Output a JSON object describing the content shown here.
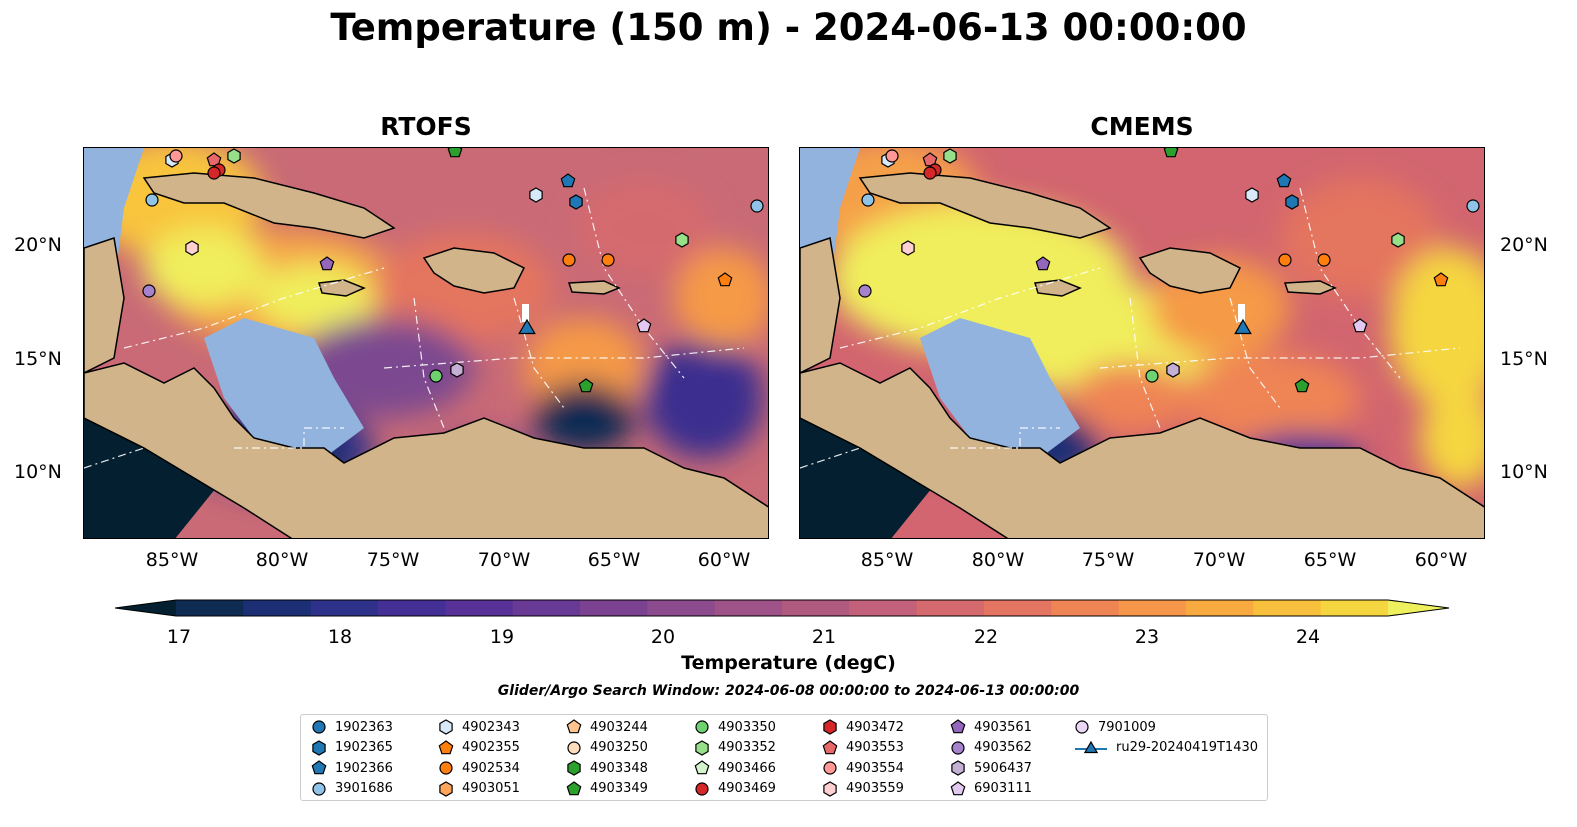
{
  "title": "Temperature (150 m) - 2024-06-13 00:00:00",
  "panels": [
    {
      "title": "RTOFS"
    },
    {
      "title": "CMEMS"
    }
  ],
  "lat_labels": [
    "20°N",
    "15°N",
    "10°N"
  ],
  "lon_labels": [
    "85°W",
    "80°W",
    "75°W",
    "70°W",
    "65°W",
    "60°W"
  ],
  "colorbar": {
    "label": "Temperature (degC)",
    "ticks": [
      "17",
      "18",
      "19",
      "20",
      "21",
      "22",
      "23",
      "24"
    ],
    "min": 17,
    "max": 24.5,
    "step": 0.5,
    "colors": [
      "#041f2f",
      "#0e2b52",
      "#1d2f74",
      "#2e318a",
      "#432f95",
      "#573197",
      "#683a95",
      "#7b4291",
      "#8c4b8c",
      "#9e5287",
      "#b15a80",
      "#c3617a",
      "#d46a6e",
      "#e47563",
      "#ef8455",
      "#f5964a",
      "#f8aa40",
      "#f8bf3c",
      "#f5d640",
      "#eff05e"
    ]
  },
  "search_window": "Glider/Argo Search Window: 2024-06-08 00:00:00 to 2024-06-13 00:00:00",
  "legend": [
    {
      "label": "1902363",
      "marker": "circle",
      "color": "#1f77b4"
    },
    {
      "label": "1902365",
      "marker": "hexagon",
      "color": "#1f77b4"
    },
    {
      "label": "1902366",
      "marker": "pentagon",
      "color": "#1f77b4"
    },
    {
      "label": "3901686",
      "marker": "circle",
      "color": "#8fc3e8"
    },
    {
      "label": "4902343",
      "marker": "hexagon",
      "color": "#d8eafa"
    },
    {
      "label": "4902355",
      "marker": "pentagon",
      "color": "#ff7f0e"
    },
    {
      "label": "4902534",
      "marker": "circle",
      "color": "#ff7f0e"
    },
    {
      "label": "4903051",
      "marker": "hexagon",
      "color": "#ffa55c"
    },
    {
      "label": "4903244",
      "marker": "pentagon",
      "color": "#ffc58f"
    },
    {
      "label": "4903250",
      "marker": "circle",
      "color": "#ffdcbc"
    },
    {
      "label": "4903348",
      "marker": "hexagon",
      "color": "#2ca02c"
    },
    {
      "label": "4903349",
      "marker": "pentagon",
      "color": "#2ca02c"
    },
    {
      "label": "4903350",
      "marker": "circle",
      "color": "#6fd16f"
    },
    {
      "label": "4903352",
      "marker": "hexagon",
      "color": "#98df8a"
    },
    {
      "label": "4903466",
      "marker": "pentagon",
      "color": "#d4f5cc"
    },
    {
      "label": "4903469",
      "marker": "circle",
      "color": "#d62728"
    },
    {
      "label": "4903472",
      "marker": "hexagon",
      "color": "#d62728"
    },
    {
      "label": "4903553",
      "marker": "pentagon",
      "color": "#e8686a"
    },
    {
      "label": "4903554",
      "marker": "circle",
      "color": "#ff9896"
    },
    {
      "label": "4903559",
      "marker": "hexagon",
      "color": "#ffd0d0"
    },
    {
      "label": "4903561",
      "marker": "pentagon",
      "color": "#9467bd"
    },
    {
      "label": "4903562",
      "marker": "circle",
      "color": "#a782cc"
    },
    {
      "label": "5906437",
      "marker": "hexagon",
      "color": "#c5b0d5"
    },
    {
      "label": "6903111",
      "marker": "pentagon",
      "color": "#e3c8f0"
    },
    {
      "label": "7901009",
      "marker": "circle",
      "color": "#ead7f5"
    },
    {
      "label": "ru29-20240419T1430",
      "marker": "triangle-line",
      "color": "#1f77b4"
    }
  ]
}
